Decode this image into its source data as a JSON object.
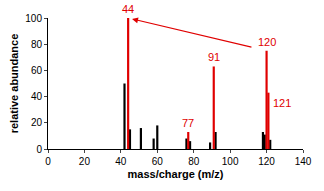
{
  "chart_data": {
    "type": "bar",
    "x_label": "mass/charge (m/z)",
    "y_label": "relative abundance",
    "series": [
      {
        "color": "#000000",
        "x": [
          42,
          45,
          51,
          58,
          60,
          76,
          78,
          89,
          92,
          118,
          119,
          122
        ],
        "values": [
          50,
          15,
          16,
          8,
          18,
          8,
          6,
          5,
          13,
          13,
          11,
          7
        ]
      },
      {
        "color": "#e00000",
        "x": [
          44,
          77,
          91,
          120,
          121
        ],
        "values": [
          100,
          13,
          63,
          75,
          43
        ]
      }
    ],
    "annotations": [
      {
        "text": "44",
        "x": 44,
        "y": 100
      },
      {
        "text": "77",
        "x": 77,
        "y": 13
      },
      {
        "text": "91",
        "x": 91,
        "y": 63
      },
      {
        "text": "120",
        "x": 120,
        "y": 75
      },
      {
        "text": "121",
        "x": 121,
        "y": 43
      }
    ],
    "xlim": [
      0,
      140
    ],
    "xticks": [
      0,
      20,
      40,
      60,
      80,
      100,
      120,
      140
    ],
    "ylim": [
      0,
      100
    ],
    "yticks": [
      0,
      20,
      40,
      60,
      80,
      100
    ],
    "grid": false
  }
}
